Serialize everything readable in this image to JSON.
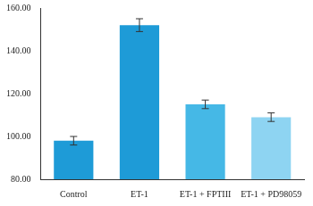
{
  "chart_data": {
    "type": "bar",
    "categories": [
      "Control",
      "ET-1",
      "ET-1 + FPTIII",
      "ET-1 + PD98059"
    ],
    "values": [
      98,
      152,
      115,
      109
    ],
    "errors": [
      2,
      3,
      2,
      2
    ],
    "colors": [
      "#1e9bd7",
      "#1e9bd7",
      "#45b8e6",
      "#8ed4f2"
    ],
    "ylim": [
      80,
      160
    ],
    "yticks": [
      {
        "value": 80,
        "label": "80.00"
      },
      {
        "value": 100,
        "label": "100.00"
      },
      {
        "value": 120,
        "label": "120.00"
      },
      {
        "value": 140,
        "label": "140.00"
      },
      {
        "value": 160,
        "label": "160.00"
      }
    ],
    "grid": false
  }
}
